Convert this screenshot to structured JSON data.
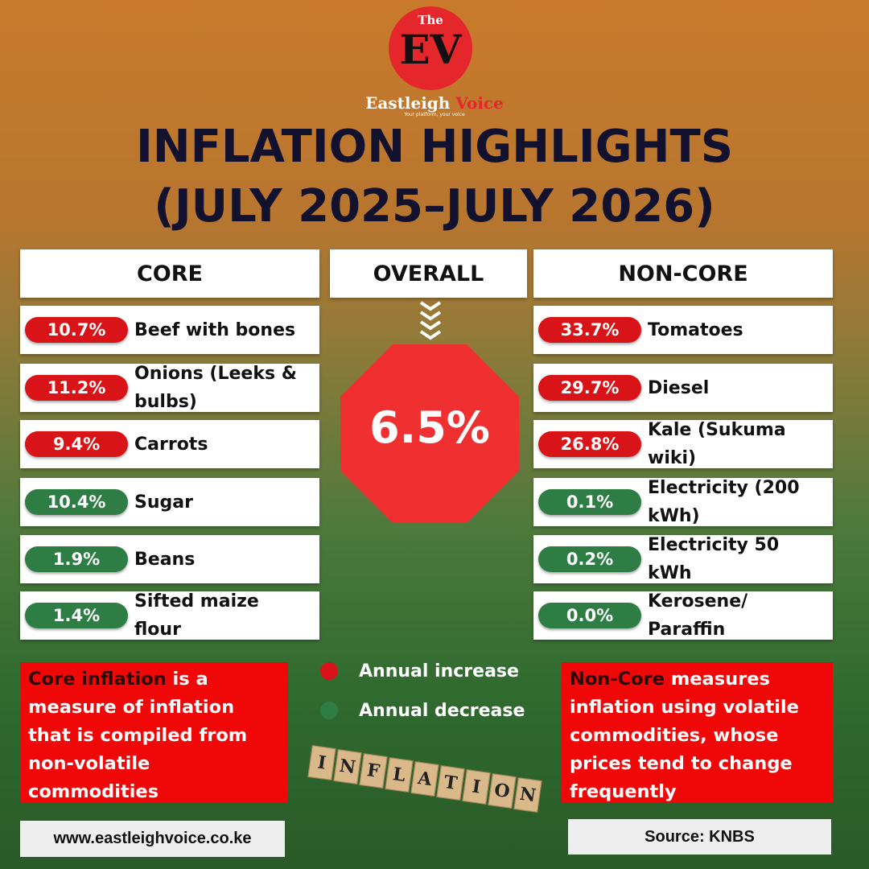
{
  "logo": {
    "the": "The",
    "mark": "EV",
    "name_1": "Eastleigh",
    "name_2": "Voice",
    "tagline": "Your platform, your voice"
  },
  "title": {
    "line_1": "INFLATION HIGHLIGHTS",
    "line_2": "(JULY 2025–JULY 2026)"
  },
  "core": {
    "header": "CORE",
    "items": [
      {
        "value": "10.7%",
        "label": "Beef with bones",
        "color": "#d81418"
      },
      {
        "value": "11.2%",
        "label": "Onions (Leeks & bulbs)",
        "color": "#d81418"
      },
      {
        "value": "9.4%",
        "label": "Carrots",
        "color": "#d81418"
      },
      {
        "value": "10.4%",
        "label": "Sugar",
        "color": "#2e7d45"
      },
      {
        "value": "1.9%",
        "label": "Beans",
        "color": "#2e7d45"
      },
      {
        "value": "1.4%",
        "label": "Sifted maize flour",
        "color": "#2e7d45"
      }
    ]
  },
  "overall": {
    "header": "OVERALL",
    "value": "6.5%",
    "color": "#f03030"
  },
  "non_core": {
    "header": "NON-CORE",
    "items": [
      {
        "value": "33.7%",
        "label": "Tomatoes",
        "color": "#d81418"
      },
      {
        "value": "29.7%",
        "label": "Diesel",
        "color": "#d81418"
      },
      {
        "value": "26.8%",
        "label": "Kale (Sukuma wiki)",
        "color": "#d81418"
      },
      {
        "value": "0.1%",
        "label": "Electricity (200 kWh)",
        "color": "#2e7d45"
      },
      {
        "value": "0.2%",
        "label": "Electricity 50 kWh",
        "color": "#2e7d45"
      },
      {
        "value": "0.0%",
        "label": "Kerosene/ Paraffin",
        "color": "#2e7d45"
      }
    ]
  },
  "legend": [
    {
      "label": "Annual increase",
      "color": "#d81418"
    },
    {
      "label": "Annual decrease",
      "color": "#2e7d45"
    }
  ],
  "notes": {
    "core": {
      "term": "Core inflation",
      "text": " is a measure of inflation that is compiled from non-volatile commodities"
    },
    "non_core": {
      "term": "Non-Core",
      "text": " measures inflation using volatile commodities, whose prices tend to change frequently"
    }
  },
  "blocks": [
    "I",
    "N",
    "F",
    "L",
    "A",
    "T",
    "I",
    "O",
    "N"
  ],
  "website": "www.eastleighvoice.co.ke",
  "source": "Source: KNBS"
}
